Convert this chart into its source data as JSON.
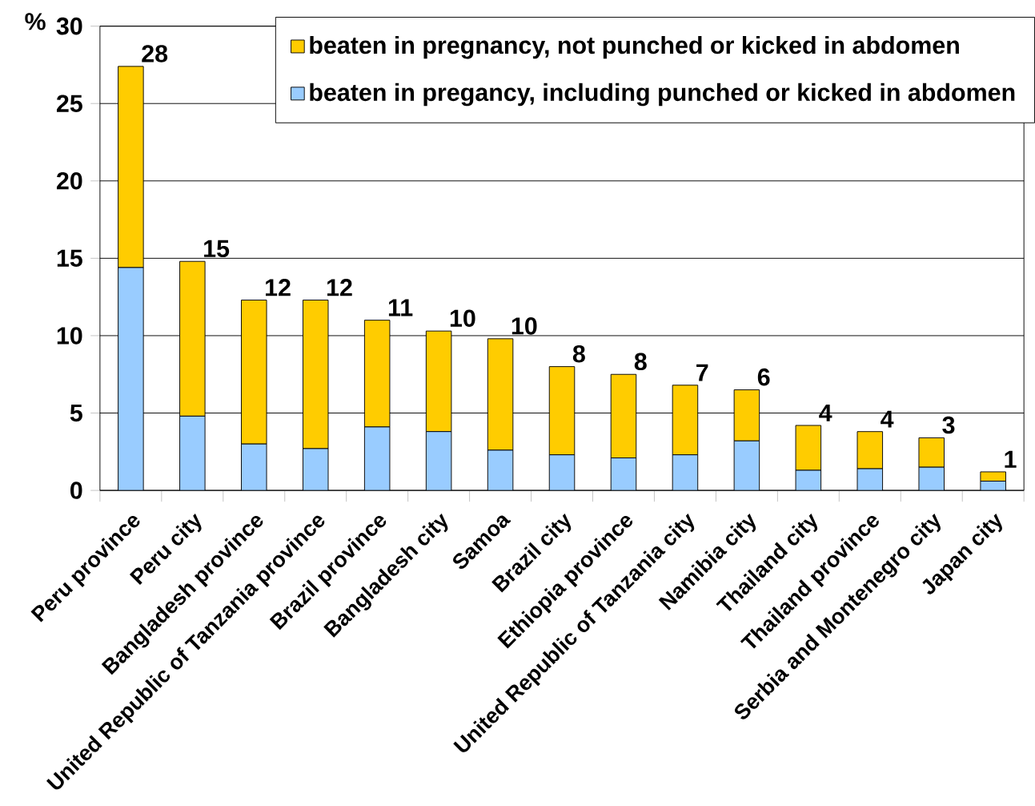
{
  "chart_data": {
    "type": "bar",
    "stacked": true,
    "ylabel": "%",
    "categories": [
      "Peru province",
      "Peru city",
      "Bangladesh province",
      "United Republic of Tanzania province",
      "Brazil province",
      "Bangladesh city",
      "Samoa",
      "Brazil city",
      "Ethiopia province",
      "United Republic of Tanzania city",
      "Namibia city",
      "Thailand city",
      "Thailand province",
      "Serbia and Montenegro city",
      "Japan city"
    ],
    "series": [
      {
        "name": "beaten in pregancy, including punched or kicked in abdomen",
        "color": "#99ccff",
        "values": [
          14.4,
          4.8,
          3.0,
          2.7,
          4.1,
          3.8,
          2.6,
          2.3,
          2.1,
          2.3,
          3.2,
          1.3,
          1.4,
          1.5,
          0.6
        ]
      },
      {
        "name": "beaten in pregnancy, not punched or kicked in abdomen",
        "color": "#ffcc00",
        "values": [
          13.0,
          10.0,
          9.3,
          9.6,
          6.9,
          6.5,
          7.2,
          5.7,
          5.4,
          4.5,
          3.3,
          2.9,
          2.4,
          1.9,
          0.6
        ]
      }
    ],
    "totals": [
      "28",
      "15",
      "12",
      "12",
      "11",
      "10",
      "10",
      "8",
      "8",
      "7",
      "6",
      "4",
      "4",
      "3",
      "1"
    ],
    "ylim": [
      0,
      30
    ],
    "yticks": [
      0,
      5,
      10,
      15,
      20,
      25,
      30
    ],
    "grid": "y",
    "legend": "top right"
  }
}
